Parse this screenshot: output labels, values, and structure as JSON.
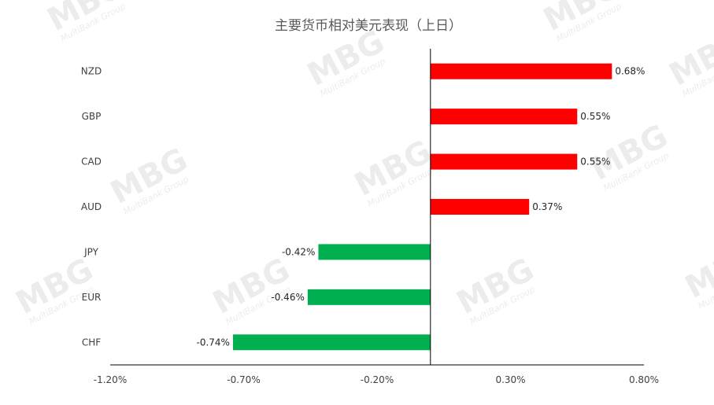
{
  "chart_data": {
    "type": "bar",
    "orientation": "horizontal",
    "title": "主要货币相对美元表现（上日）",
    "categories": [
      "NZD",
      "GBP",
      "CAD",
      "AUD",
      "JPY",
      "EUR",
      "CHF"
    ],
    "values": [
      0.68,
      0.55,
      0.55,
      0.37,
      -0.42,
      -0.46,
      -0.74
    ],
    "value_labels": [
      "0.68%",
      "0.55%",
      "0.55%",
      "0.37%",
      "-0.42%",
      "-0.46%",
      "-0.74%"
    ],
    "xlim": [
      -1.2,
      0.8
    ],
    "x_ticks": [
      -1.2,
      -0.7,
      -0.2,
      0.3,
      0.8
    ],
    "x_tick_labels": [
      "-1.20%",
      "-0.70%",
      "-0.20%",
      "0.30%",
      "0.80%"
    ],
    "xlabel": "",
    "ylabel": "",
    "grid": false,
    "legend": "none",
    "colors": {
      "positive": "#ff0000",
      "negative": "#00b050",
      "axis": "#000000"
    }
  },
  "watermark": {
    "logo": "MBG",
    "tagline": "MultiBank Group"
  }
}
